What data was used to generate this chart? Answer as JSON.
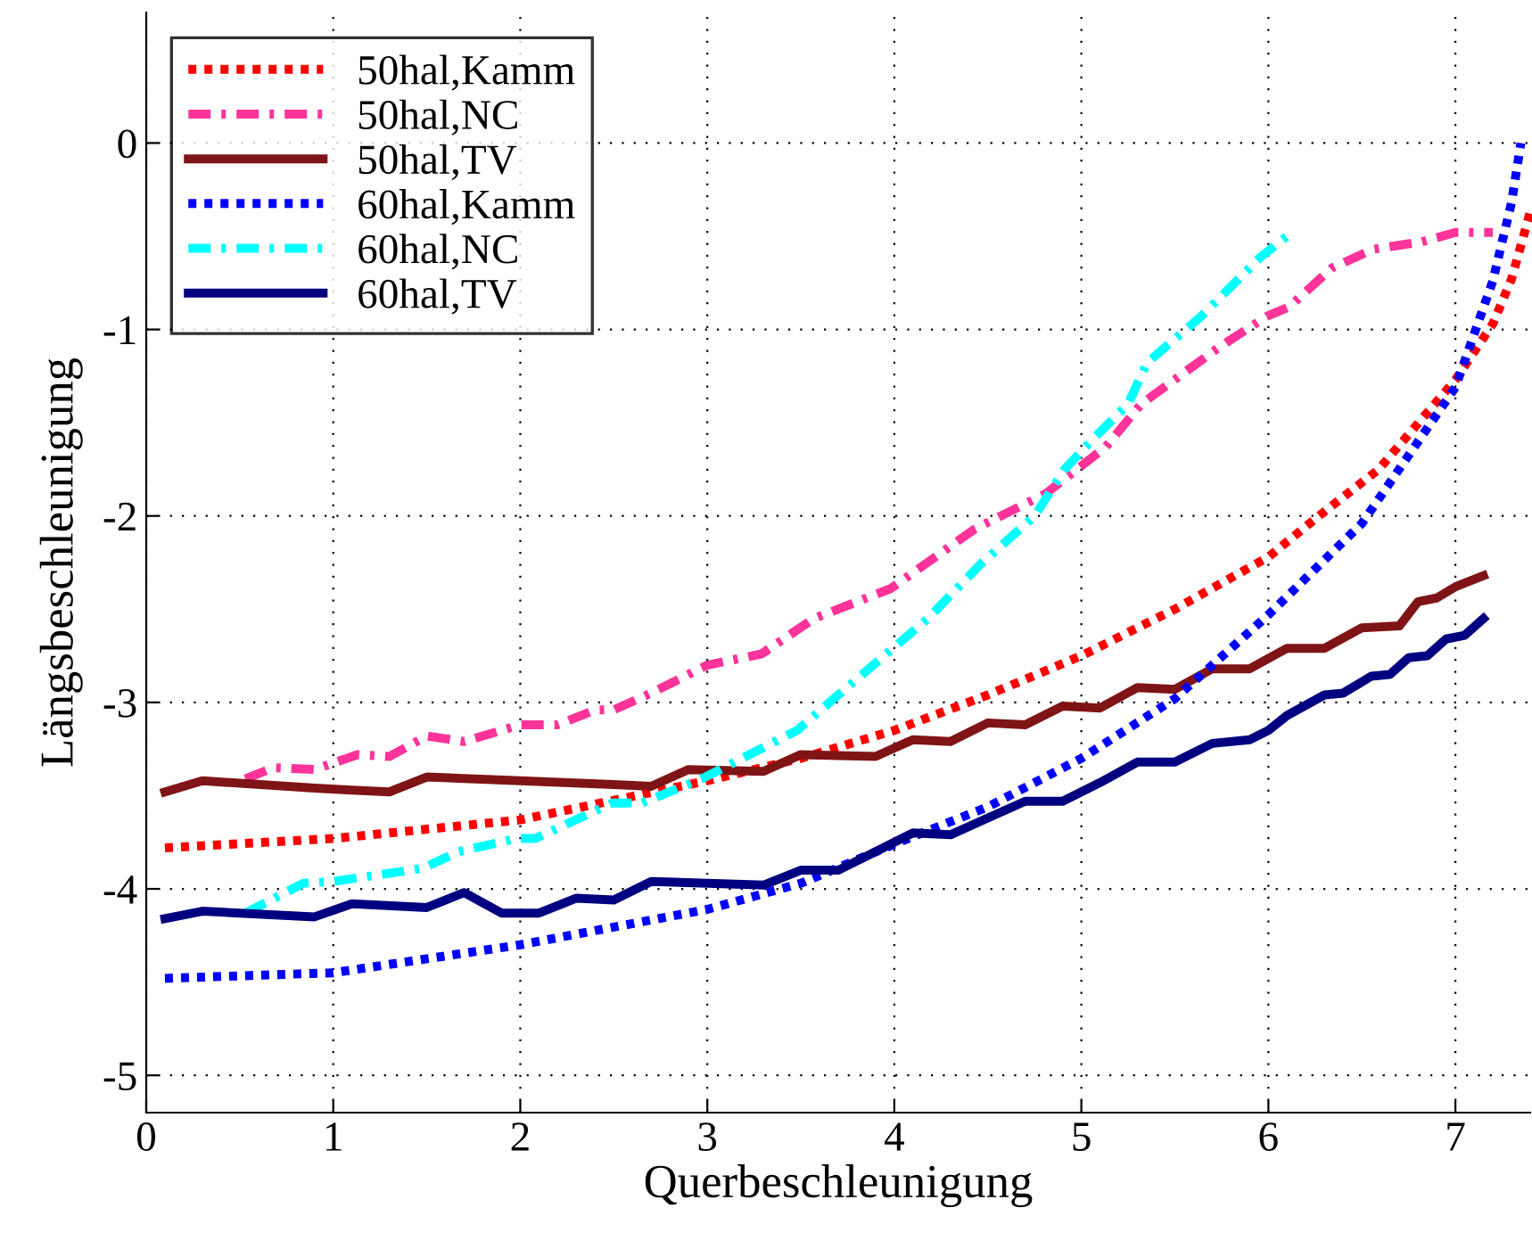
{
  "chart_data": {
    "type": "line",
    "xlabel": "Querbeschleunigung",
    "ylabel": "Längsbeschleunigung",
    "xlim": [
      0,
      7.4
    ],
    "ylim": [
      -5.2,
      0.7
    ],
    "xticks": [
      0,
      1,
      2,
      3,
      4,
      5,
      6,
      7
    ],
    "yticks": [
      {
        "value": -5,
        "label": "-5"
      },
      {
        "value": -4,
        "label": "-4"
      },
      {
        "value": -3,
        "label": "-3"
      },
      {
        "value": -2,
        "label": "-2"
      },
      {
        "value": -1,
        "label": "-1"
      },
      0
    ],
    "grid": true,
    "legend": "top left",
    "marker": "none",
    "series": [
      {
        "name": "50hal,Kamm",
        "color": "#ff0000",
        "line_style": "dotted",
        "x": [
          0.1,
          1,
          2,
          3,
          3.5,
          4,
          4.5,
          5,
          5.5,
          6,
          6.27,
          6.59,
          7,
          7.2,
          7.3,
          7.4
        ],
        "values": [
          -3.78,
          -3.73,
          -3.63,
          -3.42,
          -3.3,
          -3.15,
          -2.96,
          -2.75,
          -2.5,
          -2.22,
          -2.0,
          -1.75,
          -1.27,
          -0.97,
          -0.73,
          -0.37
        ]
      },
      {
        "name": "50hal,NC",
        "color": "#ff3399",
        "line_style": "dashdot",
        "x": [
          0.53,
          0.68,
          0.9,
          1.13,
          1.3,
          1.5,
          1.7,
          2.0,
          2.2,
          2.4,
          2.5,
          2.7,
          3.0,
          3.29,
          3.57,
          3.98,
          4.43,
          4.81,
          5.13,
          5.32,
          5.73,
          5.99,
          6.11,
          6.34,
          6.56,
          6.82,
          7.0,
          7.2
        ],
        "values": [
          -3.41,
          -3.35,
          -3.36,
          -3.28,
          -3.29,
          -3.18,
          -3.21,
          -3.12,
          -3.12,
          -3.04,
          -3.04,
          -2.95,
          -2.8,
          -2.74,
          -2.55,
          -2.39,
          -2.07,
          -1.88,
          -1.63,
          -1.4,
          -1.1,
          -0.93,
          -0.88,
          -0.67,
          -0.57,
          -0.53,
          -0.48,
          -0.48
        ]
      },
      {
        "name": "50hal,TV",
        "color": "#7f1416",
        "line_style": "solid",
        "x": [
          0.1,
          0.3,
          0.9,
          1.1,
          1.3,
          1.5,
          2.0,
          2.5,
          2.7,
          2.9,
          3.3,
          3.5,
          3.9,
          4.1,
          4.3,
          4.5,
          4.7,
          4.9,
          5.1,
          5.3,
          5.5,
          5.7,
          5.9,
          6.1,
          6.3,
          6.5,
          6.7,
          6.8,
          6.9,
          7.0,
          7.15
        ],
        "values": [
          -3.48,
          -3.42,
          -3.46,
          -3.47,
          -3.48,
          -3.4,
          -3.42,
          -3.44,
          -3.45,
          -3.36,
          -3.37,
          -3.28,
          -3.29,
          -3.2,
          -3.21,
          -3.11,
          -3.12,
          -3.02,
          -3.03,
          -2.92,
          -2.93,
          -2.82,
          -2.82,
          -2.71,
          -2.71,
          -2.6,
          -2.59,
          -2.46,
          -2.44,
          -2.38,
          -2.32
        ]
      },
      {
        "name": "60hal,Kamm",
        "color": "#0000ff",
        "line_style": "dotted",
        "x": [
          0.1,
          1,
          2,
          3,
          3.5,
          4,
          4.5,
          5,
          5.5,
          6,
          6.5,
          7,
          7.2,
          7.3,
          7.35
        ],
        "values": [
          -4.48,
          -4.45,
          -4.3,
          -4.11,
          -3.97,
          -3.76,
          -3.56,
          -3.3,
          -2.98,
          -2.53,
          -2.04,
          -1.31,
          -0.74,
          -0.32,
          0.0
        ]
      },
      {
        "name": "60hal,NC",
        "color": "#00ffff",
        "line_style": "dashdot",
        "x": [
          0.53,
          0.84,
          1.0,
          1.48,
          1.67,
          1.98,
          2.08,
          2.49,
          2.65,
          2.97,
          3.48,
          3.7,
          4.18,
          4.46,
          4.75,
          4.91,
          5.06,
          5.25,
          5.35,
          5.64,
          5.96,
          6.1
        ],
        "values": [
          -4.13,
          -3.97,
          -3.96,
          -3.89,
          -3.8,
          -3.73,
          -3.73,
          -3.54,
          -3.54,
          -3.41,
          -3.15,
          -2.96,
          -2.55,
          -2.26,
          -2.0,
          -1.75,
          -1.59,
          -1.4,
          -1.18,
          -0.93,
          -0.61,
          -0.5
        ]
      },
      {
        "name": "60hal,TV",
        "color": "#000080",
        "line_style": "solid",
        "x": [
          0.1,
          0.3,
          0.9,
          1.1,
          1.5,
          1.7,
          1.9,
          2.1,
          2.3,
          2.5,
          2.7,
          3.3,
          3.5,
          3.7,
          3.9,
          4.1,
          4.3,
          4.5,
          4.7,
          4.9,
          5.1,
          5.3,
          5.5,
          5.7,
          5.9,
          6.0,
          6.1,
          6.3,
          6.4,
          6.55,
          6.65,
          6.75,
          6.85,
          6.95,
          7.05,
          7.15
        ],
        "values": [
          -4.16,
          -4.12,
          -4.15,
          -4.08,
          -4.1,
          -4.02,
          -4.13,
          -4.13,
          -4.05,
          -4.06,
          -3.96,
          -3.98,
          -3.9,
          -3.9,
          -3.8,
          -3.7,
          -3.71,
          -3.62,
          -3.53,
          -3.53,
          -3.43,
          -3.32,
          -3.32,
          -3.22,
          -3.2,
          -3.15,
          -3.07,
          -2.96,
          -2.95,
          -2.86,
          -2.85,
          -2.76,
          -2.75,
          -2.66,
          -2.64,
          -2.55
        ]
      }
    ]
  }
}
